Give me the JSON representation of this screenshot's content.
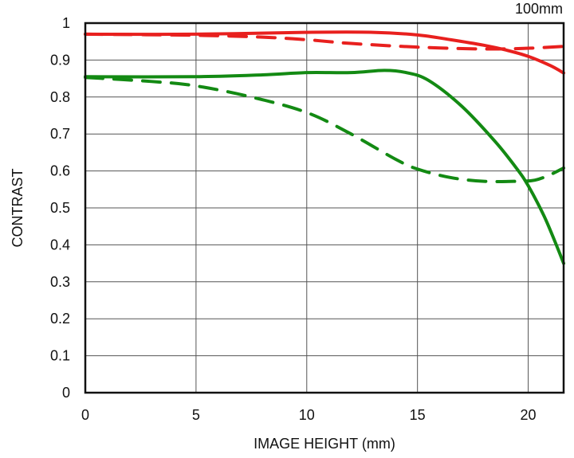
{
  "chart_data": {
    "type": "line",
    "title": "100mm",
    "xlabel": "IMAGE HEIGHT (mm)",
    "ylabel": "CONTRAST",
    "xlim": [
      0,
      21.6
    ],
    "ylim": [
      0,
      1
    ],
    "grid": true,
    "xticks": [
      "0",
      "5",
      "10",
      "15",
      "20"
    ],
    "xtick_values": [
      0,
      5,
      10,
      15,
      20
    ],
    "yticks": [
      "0",
      "0.1",
      "0.2",
      "0.3",
      "0.4",
      "0.5",
      "0.6",
      "0.7",
      "0.8",
      "0.9",
      "1"
    ],
    "ytick_values": [
      0,
      0.1,
      0.2,
      0.3,
      0.4,
      0.5,
      0.6,
      0.7,
      0.8,
      0.9,
      1
    ],
    "series": [
      {
        "color": "#e8201e",
        "dashed": false,
        "x": [
          0,
          5,
          10,
          13,
          15,
          16.5,
          18,
          19,
          20,
          21,
          21.6
        ],
        "y": [
          0.97,
          0.97,
          0.975,
          0.975,
          0.968,
          0.955,
          0.94,
          0.927,
          0.91,
          0.885,
          0.865
        ]
      },
      {
        "color": "#e8201e",
        "dashed": true,
        "x": [
          0,
          5,
          8,
          10,
          12,
          15,
          18,
          20,
          21.6
        ],
        "y": [
          0.97,
          0.967,
          0.962,
          0.955,
          0.945,
          0.935,
          0.93,
          0.932,
          0.937
        ]
      },
      {
        "color": "#138a13",
        "dashed": false,
        "x": [
          0,
          5,
          8,
          10,
          12,
          13.5,
          14.5,
          15.5,
          17,
          18.5,
          19.5,
          20,
          20.7,
          21.2,
          21.6
        ],
        "y": [
          0.855,
          0.855,
          0.86,
          0.866,
          0.866,
          0.872,
          0.866,
          0.845,
          0.775,
          0.68,
          0.605,
          0.56,
          0.48,
          0.41,
          0.35
        ]
      },
      {
        "color": "#138a13",
        "dashed": true,
        "x": [
          0,
          3,
          5,
          7.5,
          10,
          12,
          14,
          15,
          16.5,
          18,
          19.5,
          20.3,
          21,
          21.6
        ],
        "y": [
          0.853,
          0.842,
          0.83,
          0.8,
          0.758,
          0.7,
          0.632,
          0.605,
          0.582,
          0.572,
          0.572,
          0.575,
          0.59,
          0.608
        ]
      }
    ]
  }
}
